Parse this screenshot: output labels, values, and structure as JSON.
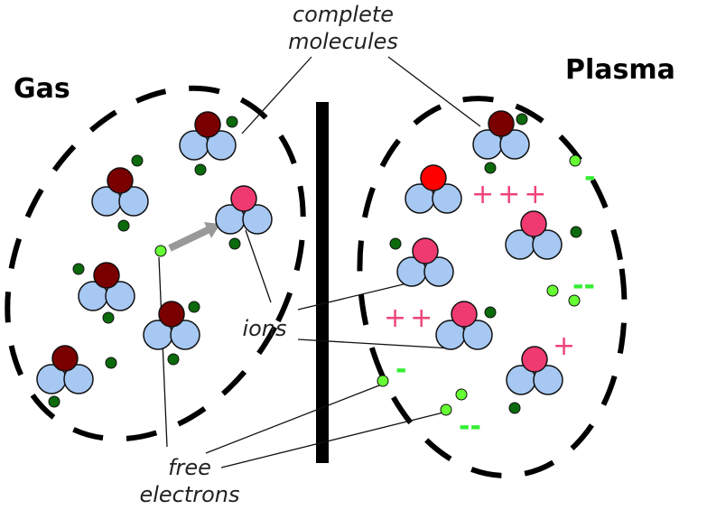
{
  "labels": {
    "gas": "Gas",
    "plasma": "Plasma",
    "complete_molecules": [
      "complete",
      "molecules"
    ],
    "ions": "ions",
    "free_electrons": [
      "free",
      "electrons"
    ]
  },
  "charges": [
    "+++",
    "++",
    "+",
    "-",
    "--",
    "--",
    "-"
  ]
}
